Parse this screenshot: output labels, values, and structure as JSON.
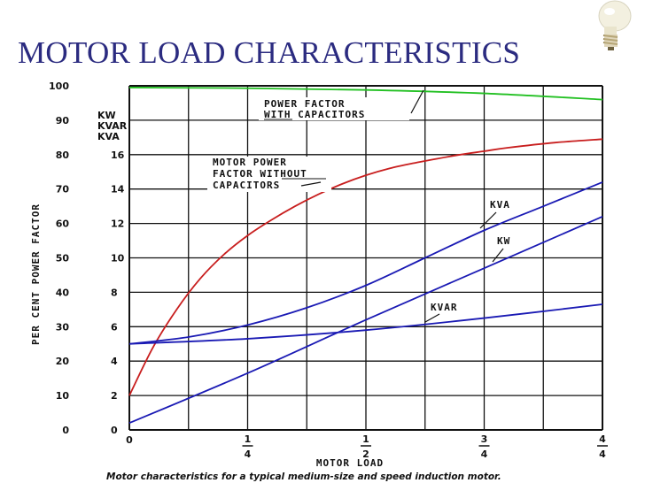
{
  "slide": {
    "title": "MOTOR LOAD CHARACTERISTICS"
  },
  "colors": {
    "title": "#2b2b80",
    "power_factor_with_capacitors": "#22c022",
    "power_factor_without_capacitors": "#c81e1e",
    "kva": "#1a1ab4",
    "kw": "#1a1ab4",
    "kvar": "#1a1ab4",
    "grid": "#111111"
  },
  "icons": [
    "light-bulb-icon"
  ],
  "chart_data": {
    "type": "line",
    "title": "",
    "xlabel": "MOTOR LOAD",
    "ylabel": "PER CENT POWER FACTOR",
    "secondary_axis_label": [
      "KW",
      "KVAR",
      "KVA"
    ],
    "caption": "Motor characteristics for a typical medium-size and speed induction motor.",
    "x_ticks": [
      {
        "value": 0,
        "label": "0"
      },
      {
        "value": 0.25,
        "label": "1/4",
        "num": "1",
        "den": "4"
      },
      {
        "value": 0.5,
        "label": "1/2",
        "num": "1",
        "den": "2"
      },
      {
        "value": 0.75,
        "label": "3/4",
        "num": "3",
        "den": "4"
      },
      {
        "value": 1.0,
        "label": "4/4",
        "num": "4",
        "den": "4"
      }
    ],
    "xlim": [
      0,
      1
    ],
    "ylim": [
      0,
      100
    ],
    "y_ticks": [
      "0",
      "10",
      "20",
      "30",
      "40",
      "50",
      "60",
      "70",
      "80",
      "90",
      "100"
    ],
    "y2_ticks": [
      "0",
      "2",
      "4",
      "6",
      "8",
      "10",
      "12",
      "14",
      "16"
    ],
    "y2lim": [
      0,
      20
    ],
    "annotations": {
      "pf_with": [
        "POWER FACTOR",
        "WITH CAPACITORS"
      ],
      "pf_without": [
        "MOTOR POWER",
        "FACTOR WITHOUT",
        "CAPACITORS"
      ],
      "kva": "KVA",
      "kw": "KW",
      "kvar": "KVAR"
    },
    "series": [
      {
        "name": "POWER FACTOR WITH CAPACITORS",
        "axis": "percent",
        "x": [
          0,
          0.25,
          0.5,
          0.75,
          1.0
        ],
        "values": [
          99.5,
          99.3,
          98.8,
          97.8,
          96.0
        ]
      },
      {
        "name": "MOTOR POWER FACTOR WITHOUT CAPACITORS",
        "axis": "percent",
        "x": [
          0,
          0.05,
          0.1,
          0.15,
          0.2,
          0.25,
          0.3,
          0.35,
          0.4,
          0.45,
          0.5,
          0.55,
          0.6,
          0.65,
          0.7,
          0.75,
          0.8,
          0.9,
          1.0
        ],
        "values": [
          10,
          24,
          35,
          44,
          51,
          56.5,
          61,
          65,
          68.5,
          71.5,
          74,
          76,
          77.5,
          78.8,
          80,
          81,
          82,
          83.5,
          84.5
        ]
      },
      {
        "name": "KVA",
        "axis": "kw",
        "x": [
          0,
          0.125,
          0.25,
          0.375,
          0.5,
          0.625,
          0.75,
          0.875,
          1.0
        ],
        "values": [
          5.0,
          5.4,
          6.1,
          7.1,
          8.4,
          10.0,
          11.6,
          13.0,
          14.4
        ]
      },
      {
        "name": "KW",
        "axis": "kw",
        "x": [
          0,
          0.25,
          0.5,
          0.75,
          1.0
        ],
        "values": [
          0.4,
          3.3,
          6.4,
          9.4,
          12.4
        ]
      },
      {
        "name": "KVAR",
        "axis": "kw",
        "x": [
          0,
          0.25,
          0.5,
          0.75,
          1.0
        ],
        "values": [
          5.0,
          5.3,
          5.8,
          6.5,
          7.3
        ]
      }
    ]
  }
}
